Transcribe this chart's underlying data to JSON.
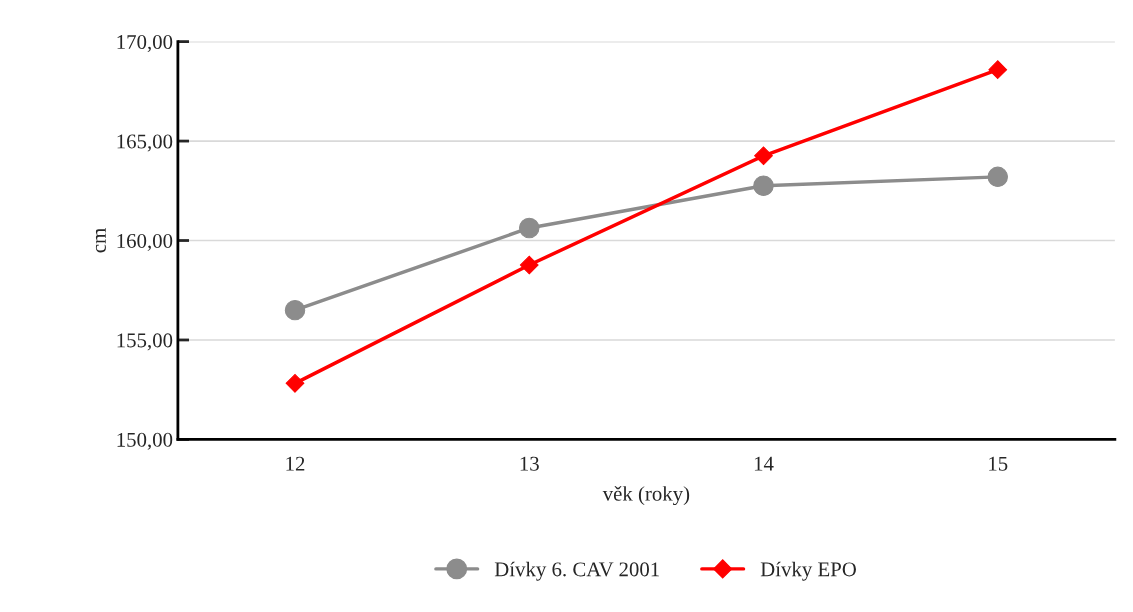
{
  "chart_data": {
    "type": "line",
    "xlabel": "věk (roky)",
    "ylabel": "cm",
    "categories": [
      "12",
      "13",
      "14",
      "15"
    ],
    "series": [
      {
        "name": "Dívky 6. CAV 2001",
        "color": "#8c8c8c",
        "marker": "circle",
        "values": [
          156.5,
          160.63,
          162.75,
          163.2
        ]
      },
      {
        "name": "Dívky EPO",
        "color": "#ff0000",
        "marker": "diamond",
        "values": [
          152.82,
          158.77,
          164.26,
          168.59
        ]
      }
    ],
    "ylim": [
      150,
      170
    ],
    "yticks": [
      {
        "value": 150,
        "label": "150,00"
      },
      {
        "value": 155,
        "label": "155,00"
      },
      {
        "value": 160,
        "label": "160,00"
      },
      {
        "value": 165,
        "label": "165,00"
      },
      {
        "value": 170,
        "label": "170,00"
      }
    ],
    "grid": "y",
    "legend": "bottom",
    "line_style": "solid"
  }
}
